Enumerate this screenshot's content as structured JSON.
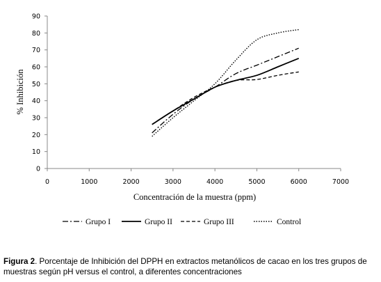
{
  "chart_data": {
    "type": "line",
    "xlabel": "Concentración de la muestra (ppm)",
    "ylabel": "% Inhibición",
    "xlim": [
      0,
      7000
    ],
    "ylim": [
      0,
      90
    ],
    "xticks": [
      "0",
      "1000",
      "2000",
      "3000",
      "4000",
      "5000",
      "6000",
      "7000"
    ],
    "yticks": [
      "0",
      "10",
      "20",
      "30",
      "40",
      "50",
      "60",
      "70",
      "80",
      "90"
    ],
    "grid": false,
    "legend_position": "bottom",
    "series": [
      {
        "name": "Grupo I",
        "dash": "dashdot",
        "points": [
          [
            2500,
            21
          ],
          [
            3000,
            32
          ],
          [
            3500,
            41
          ],
          [
            4000,
            48
          ],
          [
            4500,
            56
          ],
          [
            5000,
            61
          ],
          [
            5500,
            66
          ],
          [
            6000,
            71
          ]
        ]
      },
      {
        "name": "Grupo II",
        "dash": "solid",
        "points": [
          [
            2500,
            26
          ],
          [
            3000,
            34
          ],
          [
            3500,
            41
          ],
          [
            4000,
            48
          ],
          [
            4500,
            52
          ],
          [
            5000,
            55
          ],
          [
            5500,
            60
          ],
          [
            6000,
            65
          ]
        ]
      },
      {
        "name": "Grupo III",
        "dash": "dashed",
        "points": [
          [
            2500,
            26
          ],
          [
            3000,
            34
          ],
          [
            3500,
            42
          ],
          [
            4000,
            48
          ],
          [
            4500,
            52
          ],
          [
            5000,
            52.5
          ],
          [
            5500,
            55
          ],
          [
            6000,
            57
          ]
        ]
      },
      {
        "name": "Control",
        "dash": "dotted",
        "points": [
          [
            2500,
            19
          ],
          [
            3000,
            30
          ],
          [
            3500,
            40
          ],
          [
            4000,
            50
          ],
          [
            4500,
            64
          ],
          [
            5000,
            76
          ],
          [
            5500,
            80
          ],
          [
            6000,
            82
          ]
        ]
      }
    ]
  },
  "caption": {
    "label": "Figura 2",
    "text": ". Porcentaje de Inhibición del DPPH en extractos metanólicos de cacao en los tres grupos de muestras según pH versus el control, a diferentes concentraciones"
  }
}
